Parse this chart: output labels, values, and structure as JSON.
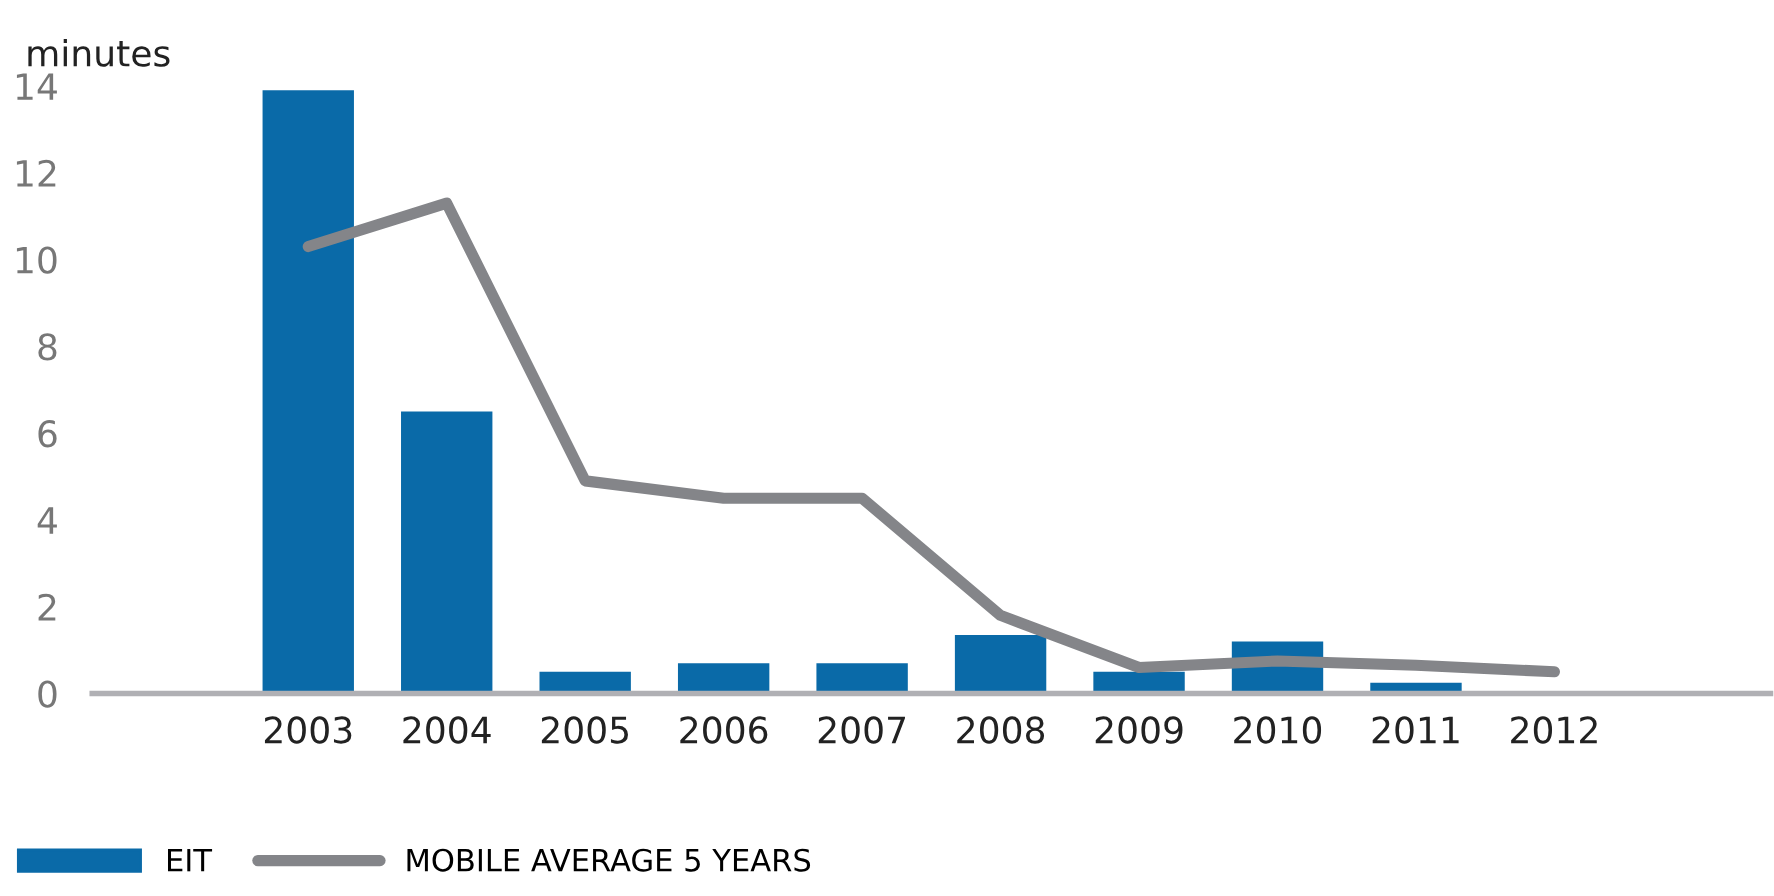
{
  "chart_data": {
    "type": "bar",
    "ylabel": "minutes",
    "categories": [
      "2003",
      "2004",
      "2005",
      "2006",
      "2007",
      "2008",
      "2009",
      "2010",
      "2011",
      "2012"
    ],
    "series": [
      {
        "name": "EIT",
        "color": "#0a6aa8",
        "values": [
          13.9,
          6.5,
          0.5,
          0.7,
          0.7,
          1.35,
          0.5,
          1.2,
          0.25,
          null
        ]
      },
      {
        "name": "MOBILE AVERAGE 5 YEARS",
        "type": "line",
        "color": "#848589",
        "values": [
          10.3,
          11.3,
          4.9,
          4.5,
          4.5,
          1.8,
          0.6,
          0.75,
          0.65,
          0.5
        ]
      }
    ],
    "ylim": [
      0,
      14
    ],
    "yticks": [
      0,
      2,
      4,
      6,
      8,
      10,
      12,
      14
    ],
    "grid": false,
    "legend": "bottom left",
    "marker": "none",
    "line_style": "solid"
  }
}
